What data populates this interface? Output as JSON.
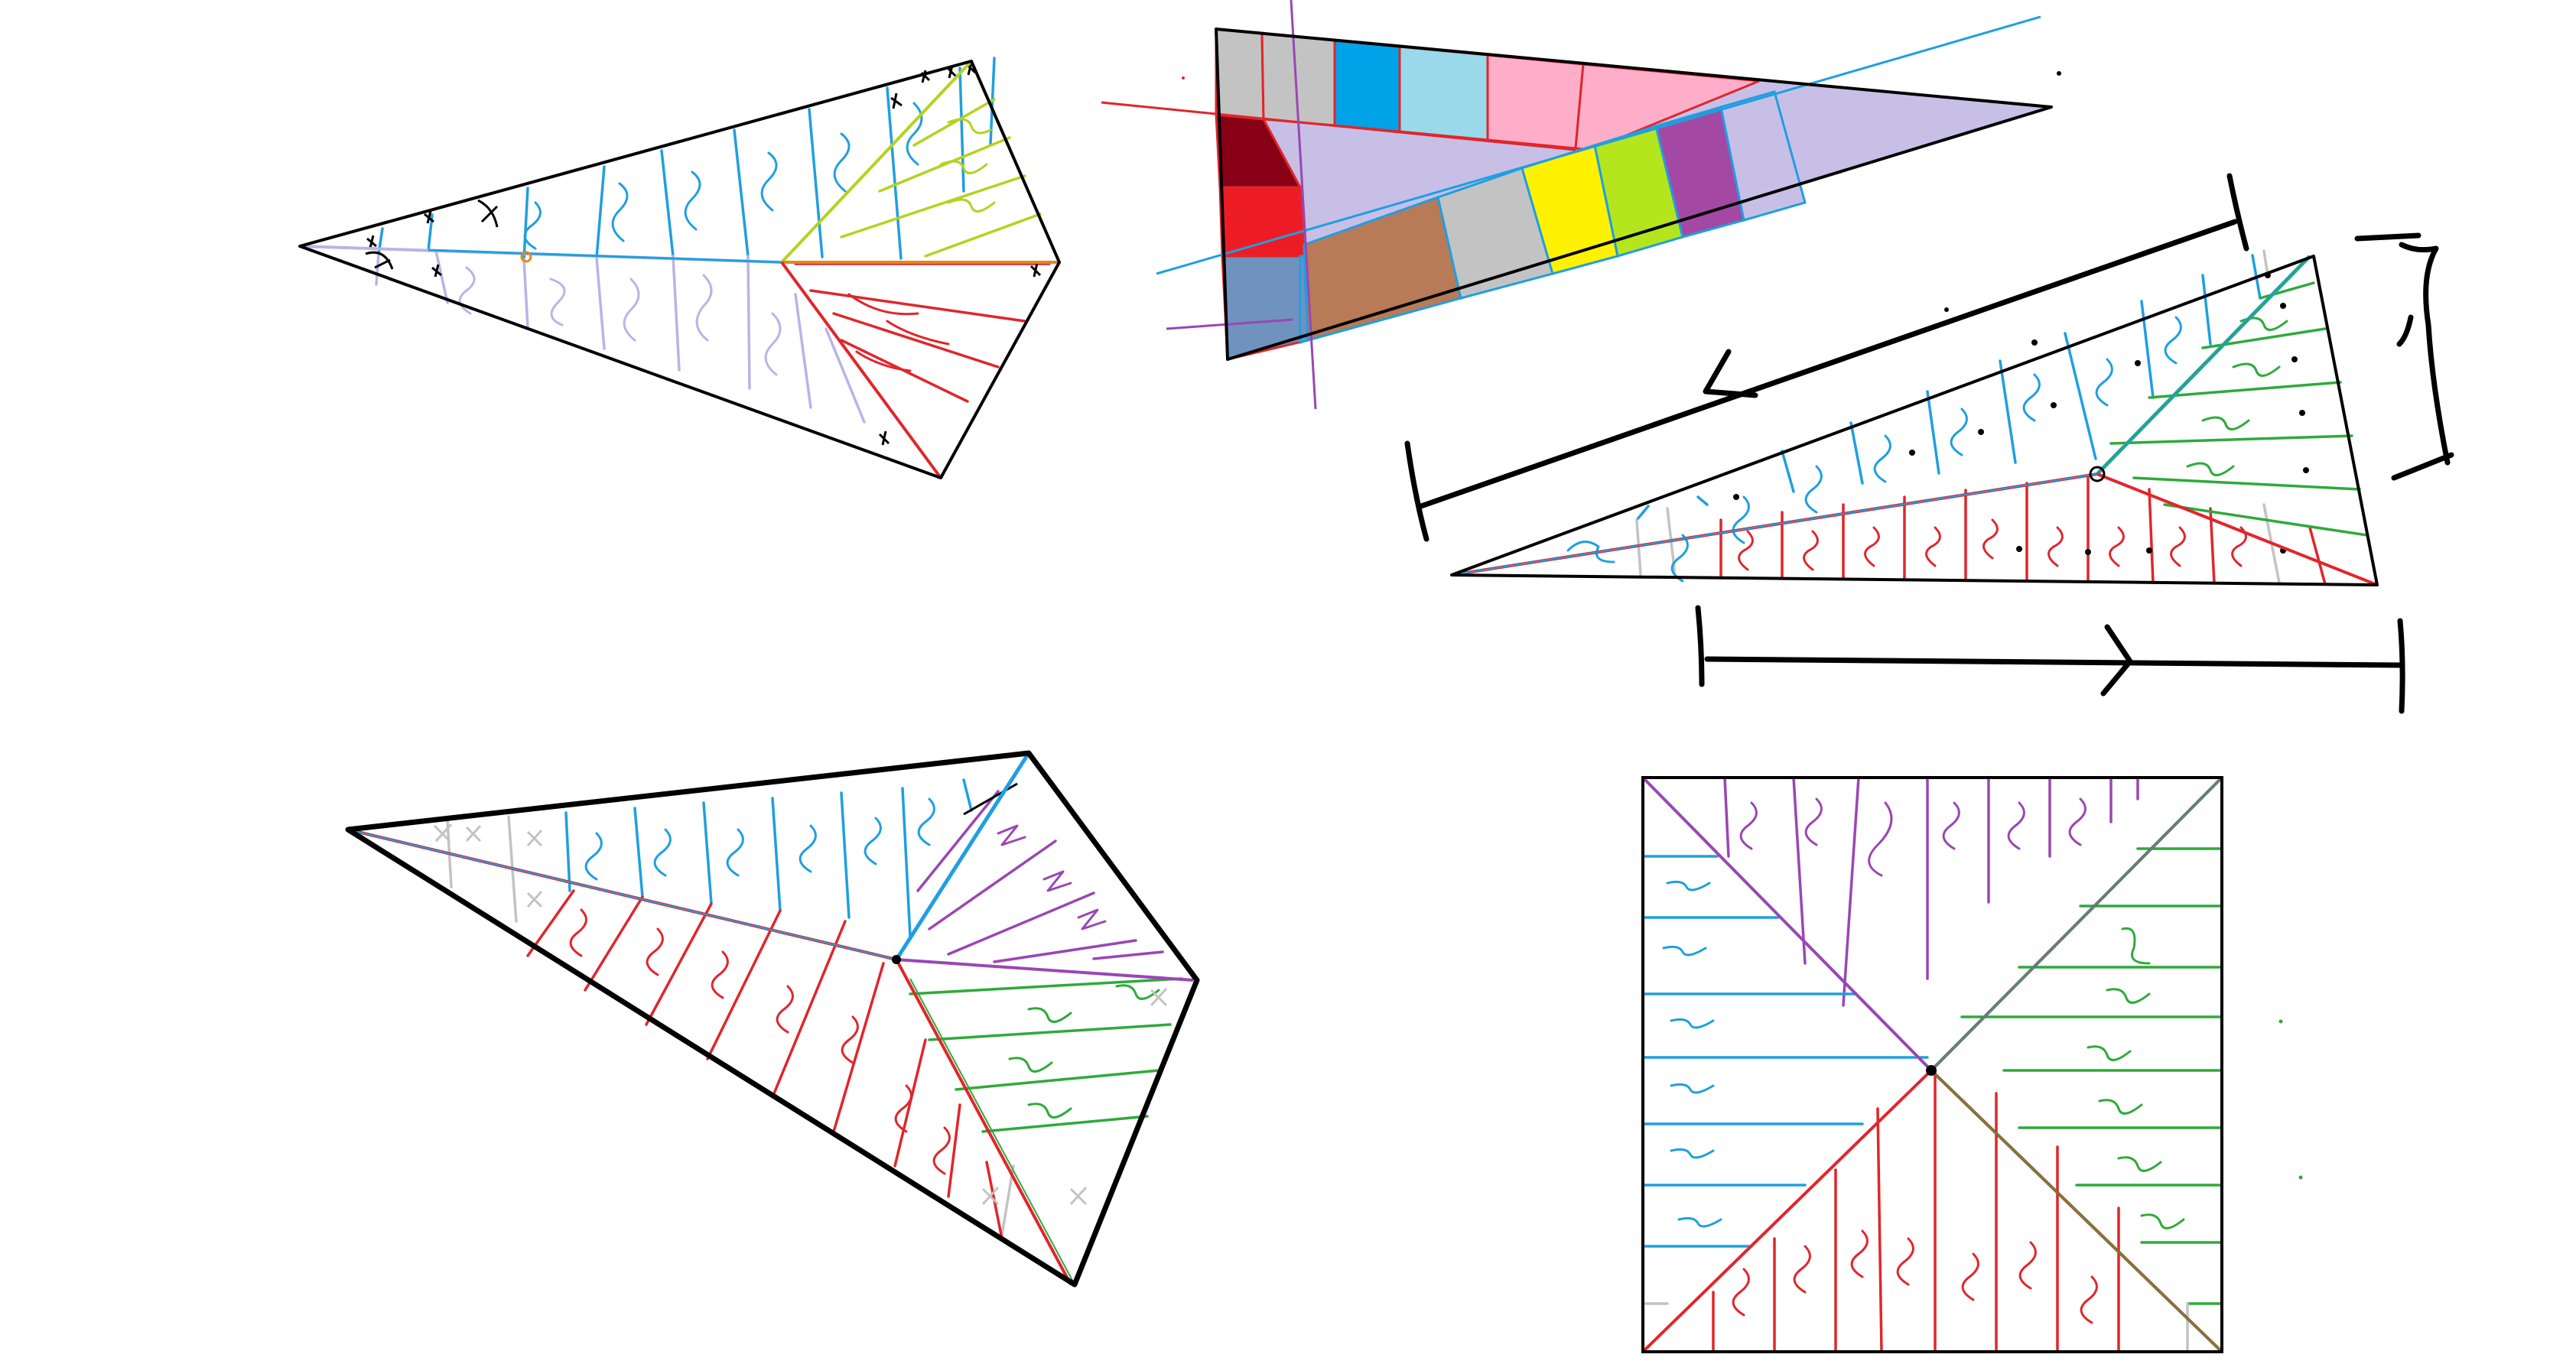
{
  "canvas": {
    "background": "#ffffff"
  },
  "palette": {
    "outline": "#000000",
    "blue": "#1f9fe0",
    "lavender": "#b9b4e6",
    "red": "#e0262b",
    "green": "#2faa3a",
    "purple": "#9a46b4",
    "lime": "#b6d21e",
    "orange": "#e08a18",
    "gray": "#c3c3c3"
  },
  "color_strip_cells": {
    "top_row": [
      "#c3c3c3",
      "#c3c3c3",
      "#00a2e8",
      "#99d9ea",
      "#ffaec9",
      "#ffaec9"
    ],
    "bottom_row": [
      "#7092be",
      "#b97a57",
      "#c3c3c3",
      "#fff200",
      "#b5e61d",
      "#a349a4",
      "#c8bfe7"
    ],
    "left_column": [
      "#880015",
      "#ed1c24",
      "#7092be"
    ],
    "tail_fill": "#c8bfe7"
  },
  "figures": [
    {
      "id": "kite-top-left",
      "regions": [
        "blue",
        "lavender",
        "lime",
        "red"
      ]
    },
    {
      "id": "color-strip-triangle",
      "regions": [
        "gray",
        "blue",
        "pink",
        "lavender",
        "dark-red",
        "red",
        "brown",
        "yellow",
        "lime",
        "purple"
      ]
    },
    {
      "id": "triangle-with-dimension-arrows",
      "regions": [
        "blue",
        "green",
        "red"
      ]
    },
    {
      "id": "quadrilateral-bottom-left",
      "regions": [
        "blue",
        "purple",
        "red",
        "green"
      ]
    },
    {
      "id": "square-bottom-right",
      "regions": [
        "purple",
        "blue",
        "green",
        "red"
      ]
    }
  ]
}
